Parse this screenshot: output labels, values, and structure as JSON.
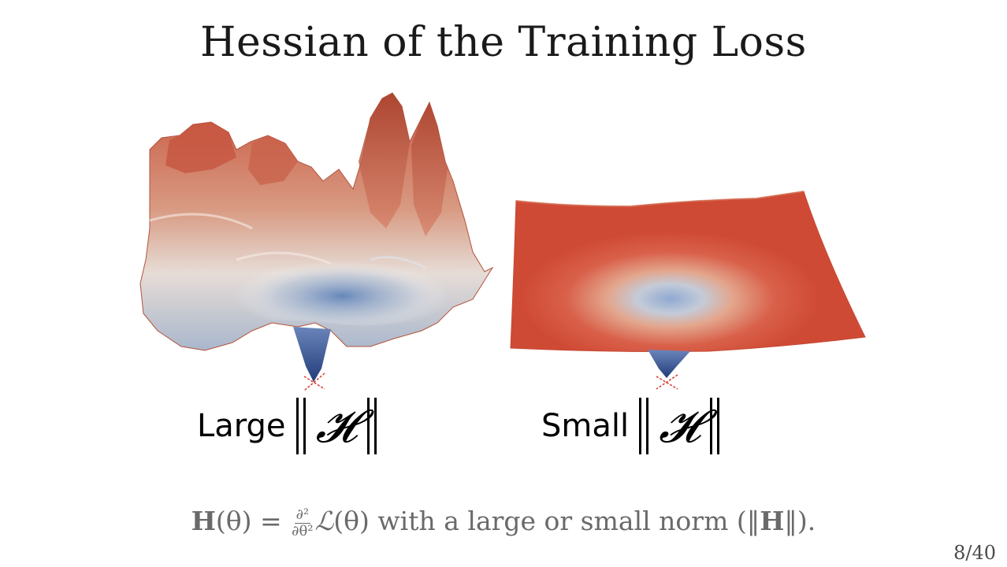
{
  "slide": {
    "title": "Hessian of the Training Loss",
    "left_label": {
      "word": "Large",
      "symbol": "𝓗"
    },
    "right_label": {
      "word": "Small",
      "symbol": "𝓗"
    },
    "caption": {
      "H_bold": "H",
      "theta_arg": "(θ) =",
      "frac_num": "∂²",
      "frac_den": "∂θ²",
      "loss_symbol": "ℒ",
      "loss_arg": "(θ)",
      "text": "with a large or small norm (‖",
      "H_bold_2": "H",
      "text_end": "‖)."
    },
    "page_number": "8/40"
  },
  "colors": {
    "surface_red": "#d2543c",
    "surface_blue": "#3d5c9c",
    "surface_pale": "#e9cdbf",
    "caption_grey": "#6a6a6a"
  }
}
